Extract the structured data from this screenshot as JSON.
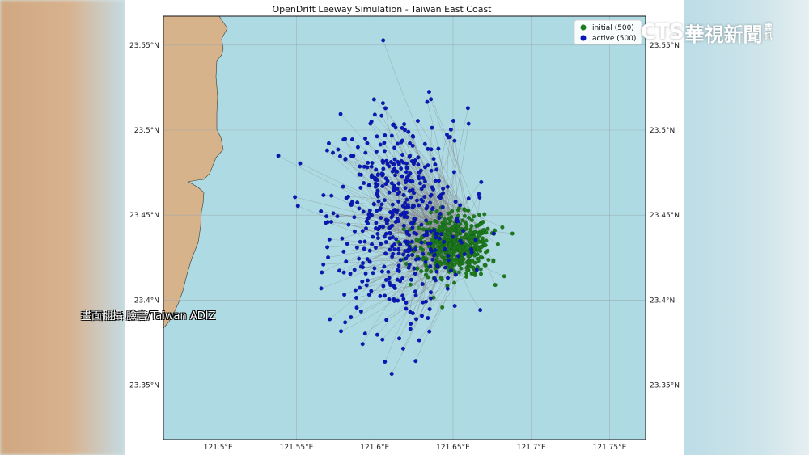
{
  "colors": {
    "land": "#d6b38b",
    "sea": "#aedbe3",
    "grid": "#9aa6ab",
    "trajectory": "#808080",
    "initial": "#1e7a1e",
    "active": "#0a18b8"
  },
  "overlay": {
    "logo_brand": "CTS",
    "logo_cn": "華視新聞",
    "logo_cn_small": "雲訊",
    "caption": "畫面翻攝 臉書/Taiwan ADIZ"
  },
  "chart_data": {
    "type": "scatter",
    "title": "OpenDrift Leeway Simulation - Taiwan East Coast",
    "xlim": [
      121.465,
      121.773
    ],
    "ylim": [
      23.318,
      23.567
    ],
    "x_ticks": [
      "121.5°E",
      "121.55°E",
      "121.6°E",
      "121.65°E",
      "121.7°E",
      "121.75°E"
    ],
    "y_ticks": [
      "23.35°N",
      "23.4°N",
      "23.45°N",
      "23.5°N",
      "23.55°N"
    ],
    "grid": true,
    "legend_position": "top-right",
    "series": [
      {
        "name": "initial (500)",
        "count": 500,
        "center": [
          121.65,
          23.432
        ],
        "spread": [
          0.012,
          0.009
        ]
      },
      {
        "name": "active (500)",
        "count": 500,
        "center": [
          121.615,
          23.448
        ],
        "spread": [
          0.022,
          0.032
        ]
      }
    ]
  }
}
